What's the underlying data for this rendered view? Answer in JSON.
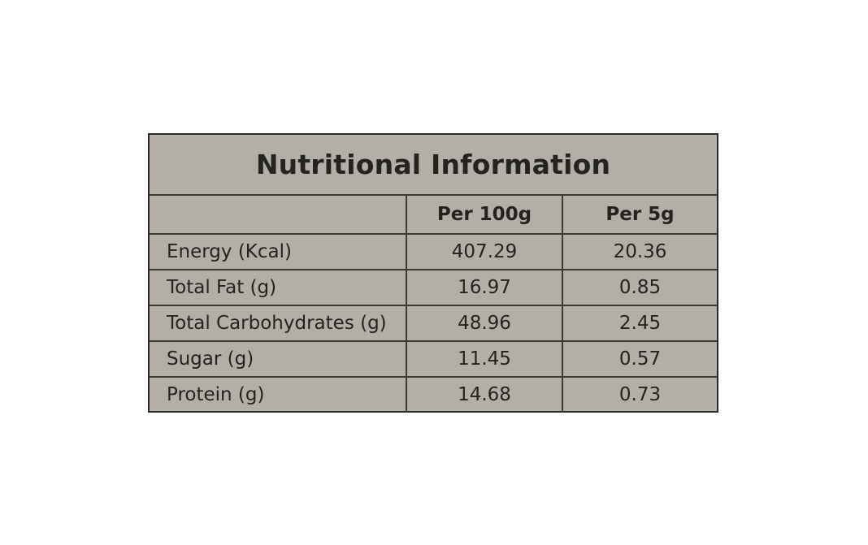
{
  "title": "Nutritional Information",
  "columns": [
    "",
    "Per 100g",
    "Per 5g"
  ],
  "rows": [
    {
      "label": "Energy (Kcal)",
      "per100g": "407.29",
      "per5g": "20.36"
    },
    {
      "label": "Total Fat (g)",
      "per100g": "16.97",
      "per5g": "0.85"
    },
    {
      "label": "Total Carbohydrates (g)",
      "per100g": "48.96",
      "per5g": "2.45"
    },
    {
      "label": "Sugar (g)",
      "per100g": "11.45",
      "per5g": "0.57"
    },
    {
      "label": "Protein (g)",
      "per100g": "14.68",
      "per5g": "0.73"
    }
  ],
  "colors": {
    "panel": "#b3aea7",
    "ink": "#24241e",
    "rule": "#3a3a33",
    "page": "#ffffff"
  }
}
